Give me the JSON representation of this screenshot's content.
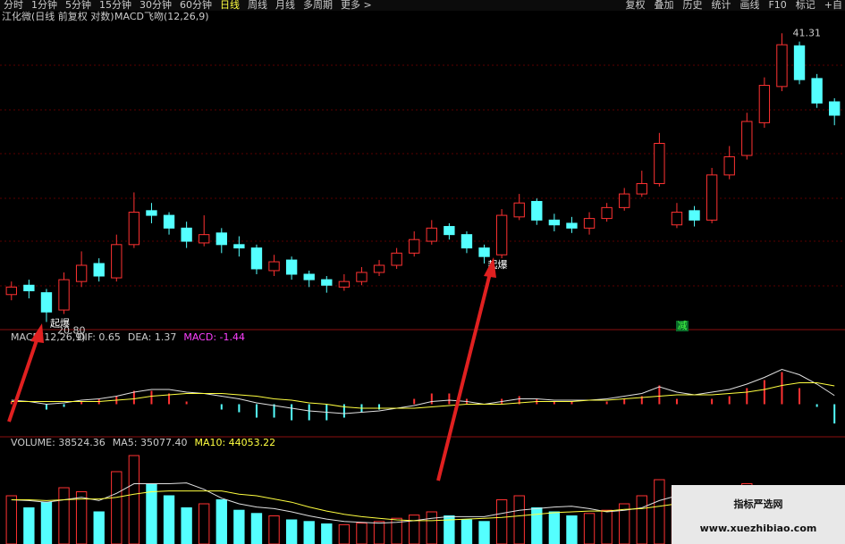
{
  "toolbar": {
    "left": [
      "分时",
      "1分钟",
      "5分钟",
      "15分钟",
      "30分钟",
      "60分钟",
      "日线",
      "周线",
      "月线",
      "多周期",
      "更多 >"
    ],
    "active": "日线",
    "right": [
      "复权",
      "叠加",
      "历史",
      "统计",
      "画线",
      "F10",
      "标记",
      "+自"
    ]
  },
  "header": {
    "title": "江化微(日线 前复权 对数)",
    "indicator": "MACD飞吻(12,26,9)"
  },
  "chart_data": [
    {
      "type": "candlestick",
      "log_scale": true,
      "ylim": [
        20.6,
        42.4
      ],
      "up_color": "#ff3232",
      "down_color": "#54ffff",
      "open": [
        22.2,
        22.7,
        22.3,
        21.4,
        22.9,
        23.9,
        23.1,
        25.0,
        27.1,
        26.8,
        26.0,
        25.1,
        25.7,
        25.0,
        24.8,
        23.5,
        24.1,
        23.3,
        23.0,
        22.6,
        22.9,
        23.4,
        23.8,
        24.5,
        25.2,
        26.1,
        25.6,
        24.8,
        24.4,
        26.7,
        27.7,
        26.5,
        26.3,
        26.0,
        26.6,
        27.3,
        28.2,
        28.9,
        26.2,
        27.1,
        26.5,
        29.5,
        30.9,
        33.4,
        36.4,
        40.1,
        37.1,
        35.1
      ],
      "high": [
        22.9,
        23.0,
        22.5,
        23.4,
        24.6,
        24.2,
        25.6,
        28.3,
        27.6,
        27.0,
        26.4,
        26.8,
        26.0,
        25.5,
        25.0,
        24.4,
        24.3,
        23.5,
        23.2,
        23.3,
        23.7,
        24.1,
        24.8,
        25.8,
        26.5,
        26.3,
        25.8,
        25.0,
        27.2,
        28.2,
        27.9,
        26.9,
        26.7,
        27.0,
        27.6,
        28.6,
        29.8,
        32.6,
        27.6,
        27.4,
        30.0,
        31.6,
        34.2,
        37.2,
        41.31,
        40.5,
        37.5,
        35.4
      ],
      "low": [
        21.9,
        22.0,
        20.8,
        21.2,
        22.6,
        22.9,
        22.9,
        24.8,
        26.3,
        25.6,
        24.8,
        24.9,
        24.5,
        24.3,
        23.3,
        23.2,
        23.0,
        22.6,
        22.3,
        22.4,
        22.7,
        23.2,
        23.6,
        24.3,
        25.0,
        25.3,
        24.5,
        23.9,
        24.2,
        26.5,
        26.2,
        25.8,
        25.7,
        25.6,
        26.4,
        27.1,
        28.0,
        28.7,
        26.0,
        26.1,
        26.3,
        29.2,
        30.6,
        33.0,
        36.0,
        36.6,
        34.6,
        33.2
      ],
      "close": [
        22.6,
        22.4,
        21.3,
        23.0,
        23.8,
        23.2,
        25.0,
        27.0,
        26.8,
        26.0,
        25.2,
        25.6,
        25.0,
        24.8,
        23.6,
        24.0,
        23.3,
        23.0,
        22.7,
        22.9,
        23.4,
        23.8,
        24.5,
        25.3,
        26.0,
        25.6,
        24.8,
        24.3,
        26.8,
        27.6,
        26.5,
        26.2,
        26.0,
        26.6,
        27.3,
        28.2,
        28.9,
        31.8,
        27.0,
        26.5,
        29.5,
        30.8,
        33.5,
        36.5,
        40.2,
        37.0,
        35.0,
        34.0
      ],
      "low_label": {
        "value": 20.8,
        "label": "20.80"
      },
      "high_label": {
        "value": 41.31,
        "label": "41.31"
      },
      "signals": [
        "起爆",
        "起爆"
      ],
      "signal_lows": [
        20.8,
        23.9
      ],
      "reduce_label": "减"
    },
    {
      "type": "macd",
      "name": "MACD(12,26,9)",
      "ylim": [
        -2.5,
        4.5
      ],
      "legend": [
        {
          "label": "DIF: 0.65",
          "value": 0.65,
          "color": "#ccc"
        },
        {
          "label": "DEA: 1.37",
          "value": 1.37,
          "color": "#ccc"
        },
        {
          "label": "MACD: -1.44",
          "value": -1.44,
          "color": "#ff40ff"
        }
      ],
      "dif": [
        0.3,
        0.2,
        0.0,
        0.1,
        0.3,
        0.4,
        0.6,
        0.9,
        1.1,
        1.1,
        0.9,
        0.8,
        0.6,
        0.4,
        0.1,
        -0.1,
        -0.3,
        -0.5,
        -0.6,
        -0.7,
        -0.6,
        -0.5,
        -0.3,
        -0.1,
        0.2,
        0.3,
        0.2,
        0.0,
        0.2,
        0.4,
        0.4,
        0.3,
        0.3,
        0.3,
        0.4,
        0.6,
        0.8,
        1.3,
        0.9,
        0.7,
        0.9,
        1.1,
        1.5,
        2.0,
        2.6,
        2.2,
        1.5,
        0.65
      ],
      "dea": [
        0.2,
        0.2,
        0.2,
        0.2,
        0.2,
        0.2,
        0.3,
        0.4,
        0.6,
        0.7,
        0.8,
        0.8,
        0.8,
        0.7,
        0.6,
        0.4,
        0.3,
        0.1,
        0.0,
        -0.2,
        -0.3,
        -0.3,
        -0.3,
        -0.3,
        -0.2,
        -0.1,
        0.0,
        0.0,
        0.0,
        0.1,
        0.2,
        0.2,
        0.2,
        0.3,
        0.3,
        0.4,
        0.5,
        0.6,
        0.7,
        0.7,
        0.7,
        0.8,
        0.9,
        1.1,
        1.4,
        1.6,
        1.6,
        1.37
      ],
      "macd": [
        0.2,
        0,
        -0.4,
        -0.2,
        0.2,
        0.4,
        0.6,
        1.0,
        1.0,
        0.8,
        0.2,
        0,
        -0.4,
        -0.6,
        -1.0,
        -1.0,
        -1.2,
        -1.2,
        -1.2,
        -1.0,
        -0.6,
        -0.4,
        0,
        0.4,
        0.8,
        0.8,
        0.4,
        0,
        0.4,
        0.6,
        0.4,
        0.2,
        0.2,
        0,
        0.2,
        0.4,
        0.6,
        1.4,
        0.4,
        0,
        0.4,
        0.6,
        1.2,
        1.8,
        2.4,
        1.2,
        -0.2,
        -1.44
      ]
    },
    {
      "type": "volume",
      "ylim": [
        0,
        120000
      ],
      "legend": [
        {
          "label": "VOLUME: 38524.36",
          "value": 38524.36,
          "color": "#ccc"
        },
        {
          "label": "MA5: 35077.40",
          "value": 35077.4,
          "color": "#ccc"
        },
        {
          "label": "MA10: 44053.22",
          "value": 44053.22,
          "color": "#ffff40"
        }
      ],
      "volume": [
        60000,
        45000,
        52000,
        70000,
        65000,
        40000,
        90000,
        110000,
        75000,
        60000,
        45000,
        50000,
        55000,
        42000,
        38000,
        35000,
        30000,
        28000,
        25000,
        24000,
        26000,
        28000,
        32000,
        36000,
        40000,
        35000,
        30000,
        28000,
        55000,
        60000,
        45000,
        40000,
        35000,
        38000,
        42000,
        50000,
        60000,
        80000,
        70000,
        50000,
        55000,
        65000,
        75000,
        60000,
        45000,
        30000,
        32000,
        38524.36
      ],
      "ma5": [
        55000,
        54000,
        52000,
        55000,
        58000,
        54000,
        63000,
        75000,
        75000,
        75000,
        76000,
        68000,
        57000,
        50000,
        46000,
        44000,
        40000,
        35000,
        31000,
        28000,
        27000,
        26000,
        27000,
        29000,
        32000,
        34000,
        34000,
        34000,
        38000,
        42000,
        44000,
        46000,
        47000,
        44000,
        40000,
        42000,
        45000,
        54000,
        60000,
        62000,
        63000,
        64000,
        63000,
        61000,
        55000,
        50000,
        42000,
        35077.4
      ],
      "ma10": [
        55000,
        55000,
        54000,
        55000,
        56000,
        56000,
        58000,
        62000,
        65000,
        66000,
        66000,
        66000,
        66000,
        62000,
        60000,
        56000,
        52000,
        46000,
        41000,
        37000,
        34000,
        32000,
        30000,
        29000,
        29000,
        30000,
        31000,
        32000,
        33000,
        35000,
        37000,
        39000,
        40000,
        41000,
        41000,
        43000,
        44000,
        47000,
        50000,
        52000,
        53000,
        55000,
        56000,
        54000,
        52000,
        50000,
        47000,
        44053.22
      ]
    }
  ],
  "watermark": {
    "title": "指标严选网",
    "url": "www.xuezhibiao.com"
  }
}
